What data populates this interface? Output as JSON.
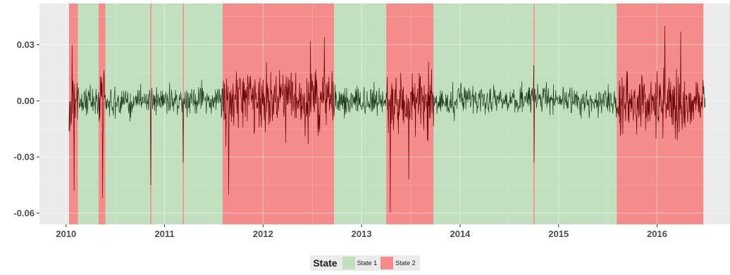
{
  "chart_data": {
    "type": "line",
    "title": "",
    "xlabel": "",
    "ylabel": "",
    "x_ticks": [
      "2010",
      "2011",
      "2012",
      "2013",
      "2014",
      "2015",
      "2016"
    ],
    "x_tick_values": [
      2010,
      2011,
      2012,
      2013,
      2014,
      2015,
      2016
    ],
    "y_ticks": [
      "-0.06",
      "-0.03",
      "0.00",
      "0.03"
    ],
    "y_tick_values": [
      -0.06,
      -0.03,
      0.0,
      0.03
    ],
    "xlim": [
      2009.73,
      2016.74
    ],
    "ylim": [
      -0.066,
      0.052
    ],
    "grid": true,
    "legend": {
      "title": "State",
      "placement": "bottom",
      "entries": [
        {
          "label": "State 1",
          "color": "#c2dfbf"
        },
        {
          "label": "State 2",
          "color": "#f48c8c"
        }
      ]
    },
    "regimes": [
      {
        "state": "State 2",
        "start": 2010.03,
        "end": 2010.12
      },
      {
        "state": "State 1",
        "start": 2010.12,
        "end": 2010.33
      },
      {
        "state": "State 2",
        "start": 2010.33,
        "end": 2010.4
      },
      {
        "state": "State 1",
        "start": 2010.4,
        "end": 2011.59
      },
      {
        "state": "State 2",
        "start": 2011.59,
        "end": 2012.72
      },
      {
        "state": "State 1",
        "start": 2012.72,
        "end": 2013.25
      },
      {
        "state": "State 2",
        "start": 2013.25,
        "end": 2013.73
      },
      {
        "state": "State 1",
        "start": 2013.73,
        "end": 2015.59
      },
      {
        "state": "State 2",
        "start": 2015.59,
        "end": 2016.47
      }
    ],
    "thin_state2_marks": [
      2010.86,
      2011.19,
      2014.75
    ],
    "series": [
      {
        "color_state1": "#1f3d1f",
        "color_state2": "#6b0000",
        "start": 2010.03,
        "end": 2016.49,
        "typical_range": {
          "State 1": [
            -0.012,
            0.012
          ],
          "State 2": [
            -0.025,
            0.025
          ]
        },
        "spikes": [
          {
            "x": 2010.06,
            "y": 0.03
          },
          {
            "x": 2010.08,
            "y": -0.048
          },
          {
            "x": 2010.37,
            "y": -0.052
          },
          {
            "x": 2010.86,
            "y": 0.046
          },
          {
            "x": 2010.86,
            "y": -0.045
          },
          {
            "x": 2011.19,
            "y": 0.044
          },
          {
            "x": 2011.19,
            "y": -0.033
          },
          {
            "x": 2011.65,
            "y": -0.05
          },
          {
            "x": 2012.48,
            "y": 0.032
          },
          {
            "x": 2012.62,
            "y": 0.034
          },
          {
            "x": 2013.29,
            "y": -0.06
          },
          {
            "x": 2013.48,
            "y": -0.042
          },
          {
            "x": 2014.75,
            "y": -0.033
          },
          {
            "x": 2016.08,
            "y": 0.04
          },
          {
            "x": 2016.24,
            "y": 0.037
          }
        ]
      }
    ]
  }
}
